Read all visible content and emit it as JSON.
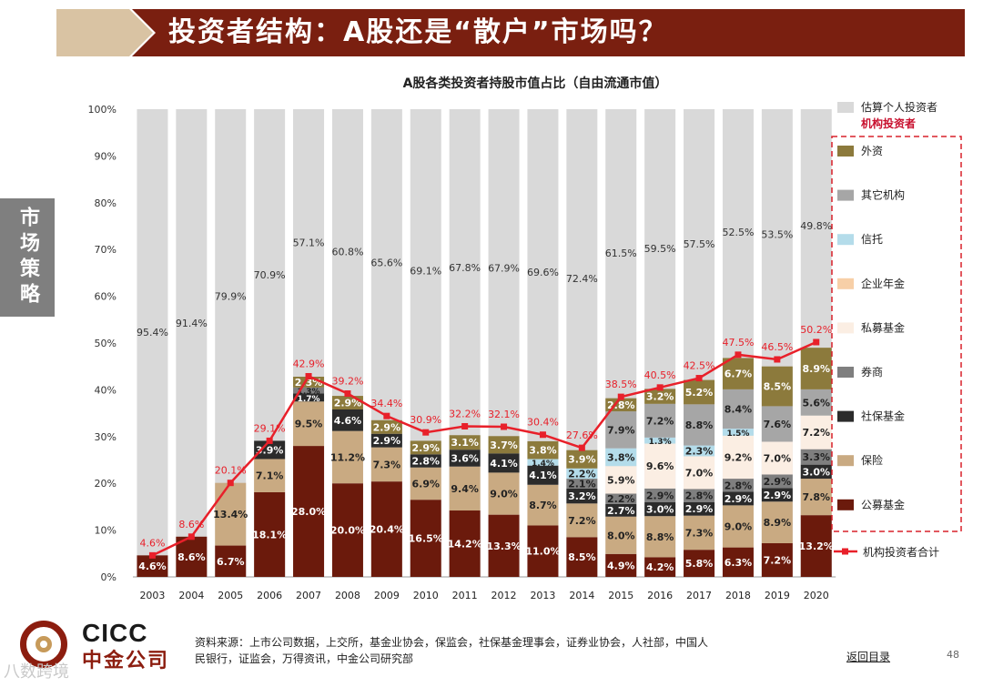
{
  "header": {
    "title": "投资者结构：A股还是“散户”市场吗？"
  },
  "side_tab": "市场策略",
  "chart_data": {
    "type": "stacked-bar-with-line",
    "title": "A股各类投资者持股市值占比（自由流通市值）",
    "categories": [
      "2003",
      "2004",
      "2005",
      "2006",
      "2007",
      "2008",
      "2009",
      "2010",
      "2011",
      "2012",
      "2013",
      "2014",
      "2015",
      "2016",
      "2017",
      "2018",
      "2019",
      "2020"
    ],
    "y_ticks": [
      "0%",
      "10%",
      "20%",
      "30%",
      "40%",
      "50%",
      "60%",
      "70%",
      "80%",
      "90%",
      "100%"
    ],
    "ylim": [
      0,
      100
    ],
    "series": [
      {
        "name": "公募基金",
        "color": "#6b1a0c",
        "label_color": "#ffffff",
        "values": [
          4.6,
          8.6,
          6.7,
          18.1,
          28.0,
          20.0,
          20.4,
          16.5,
          14.2,
          13.3,
          11.0,
          8.5,
          4.9,
          4.2,
          5.8,
          6.3,
          7.2,
          13.2
        ]
      },
      {
        "name": "保险",
        "color": "#c9aa82",
        "label_color": "#222222",
        "values": [
          null,
          null,
          13.4,
          7.1,
          9.5,
          11.2,
          7.3,
          6.9,
          9.4,
          9.0,
          8.7,
          7.2,
          8.0,
          8.8,
          7.3,
          9.0,
          8.9,
          7.8
        ]
      },
      {
        "name": "社保基金",
        "color": "#2b2b2b",
        "label_color": "#ffffff",
        "values": [
          null,
          null,
          null,
          3.9,
          1.7,
          4.6,
          2.9,
          2.8,
          3.6,
          4.1,
          4.1,
          3.2,
          2.7,
          3.0,
          2.9,
          2.9,
          2.9,
          3.0
        ]
      },
      {
        "name": "券商",
        "color": "#7f7f7f",
        "label_color": "#222222",
        "values": [
          null,
          null,
          null,
          null,
          1.3,
          null,
          null,
          null,
          null,
          null,
          null,
          2.1,
          2.2,
          2.9,
          2.8,
          2.8,
          2.9,
          3.3
        ]
      },
      {
        "name": "私募基金",
        "color": "#fbeee3",
        "label_color": "#222222",
        "values": [
          null,
          null,
          null,
          null,
          null,
          null,
          null,
          null,
          null,
          null,
          null,
          null,
          5.9,
          9.6,
          7.0,
          9.2,
          7.0,
          7.2
        ]
      },
      {
        "name": "企业年金",
        "color": "#f7cfa7",
        "label_color": "#222222",
        "values": [
          null,
          null,
          null,
          null,
          null,
          null,
          null,
          null,
          null,
          null,
          null,
          null,
          null,
          null,
          null,
          null,
          null,
          null
        ]
      },
      {
        "name": "信托",
        "color": "#b4dcea",
        "label_color": "#222222",
        "values": [
          null,
          null,
          null,
          null,
          null,
          null,
          null,
          null,
          null,
          null,
          1.4,
          2.2,
          3.8,
          1.3,
          2.3,
          1.5,
          null,
          null
        ]
      },
      {
        "name": "其它机构",
        "color": "#a6a6a6",
        "label_color": "#222222",
        "values": [
          null,
          null,
          null,
          null,
          null,
          null,
          null,
          null,
          null,
          null,
          null,
          null,
          7.9,
          7.2,
          8.8,
          8.4,
          7.6,
          5.6
        ]
      },
      {
        "name": "外资",
        "color": "#8c7a3c",
        "label_color": "#ffffff",
        "values": [
          null,
          null,
          null,
          null,
          2.3,
          2.9,
          2.9,
          2.9,
          3.1,
          3.7,
          3.8,
          3.9,
          2.8,
          3.2,
          5.2,
          6.7,
          8.5,
          8.9
        ]
      }
    ],
    "retail": {
      "name": "估算个人投资者",
      "color": "#d9d9d9",
      "values": [
        95.4,
        91.4,
        79.9,
        70.9,
        57.1,
        60.8,
        65.6,
        69.1,
        67.8,
        67.9,
        69.6,
        72.4,
        61.5,
        59.5,
        57.5,
        52.5,
        53.5,
        49.8
      ]
    },
    "total_line": {
      "name": "机构投资者合计",
      "color": "#e8202a",
      "values": [
        4.6,
        8.6,
        20.1,
        29.1,
        42.9,
        39.2,
        34.4,
        30.9,
        32.2,
        32.1,
        30.4,
        27.6,
        38.5,
        40.5,
        42.5,
        47.5,
        46.5,
        50.2
      ]
    },
    "legend": {
      "retail_label": "估算个人投资者",
      "group_label": "机构投资者",
      "items": [
        "外资",
        "其它机构",
        "信托",
        "企业年金",
        "私募基金",
        "券商",
        "社保基金",
        "保险",
        "公募基金"
      ],
      "line_label": "机构投资者合计"
    }
  },
  "logo": {
    "en": "CICC",
    "cn": "中金公司"
  },
  "footer": {
    "source_line1": "资料来源：上市公司数据，上交所，基金业协会，保监会，社保基金理事会，证券业协会，人社部，中国人",
    "source_line2": "民银行，证监会，万得资讯，中金公司研究部",
    "back_link": "返回目录",
    "page_number": "48",
    "watermark": "八数跨境"
  }
}
